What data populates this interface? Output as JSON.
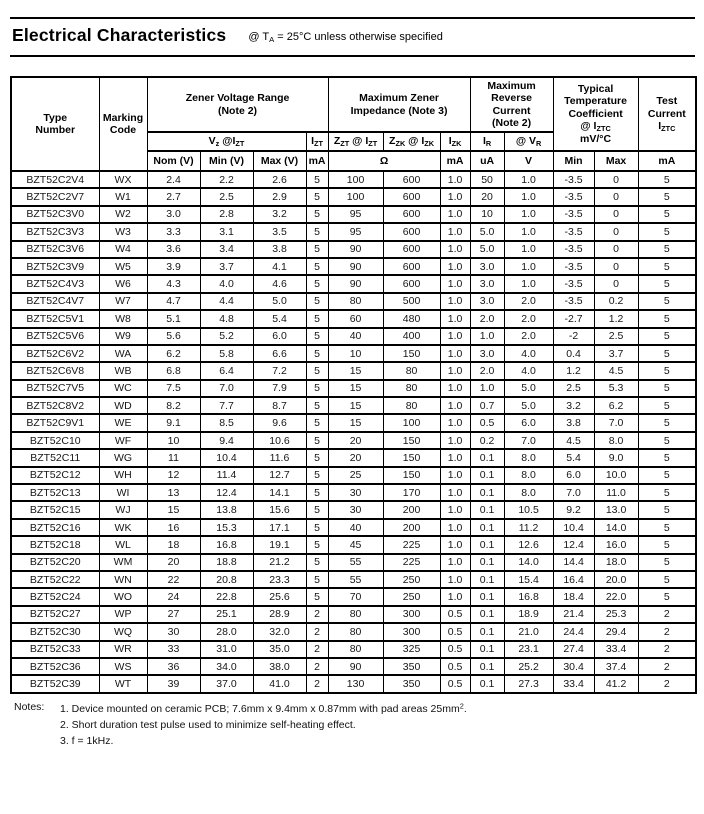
{
  "page": {
    "title": "Electrical Characteristics",
    "subtitle": [
      {
        "t": "@ T"
      },
      {
        "t": "A",
        "sub": true
      },
      {
        "t": " = 25°C unless otherwise specified"
      }
    ]
  },
  "table": {
    "column_keys": [
      "type-number",
      "marking-code",
      "vz-nom",
      "vz-min",
      "vz-max",
      "izt-ma",
      "zzt-ohm",
      "zzk-ohm",
      "izk-ma",
      "ir-ua",
      "vr-v",
      "tc-min",
      "tc-max",
      "iztc-ma"
    ],
    "header": {
      "type_number": [
        {
          "t": "Type"
        },
        {
          "br": true
        },
        {
          "t": "Number"
        }
      ],
      "marking_code": [
        {
          "t": "Marking"
        },
        {
          "br": true
        },
        {
          "t": "Code"
        }
      ],
      "zener_voltage_range": [
        {
          "t": "Zener Voltage Range"
        },
        {
          "br": true
        },
        {
          "t": "(Note 2)"
        }
      ],
      "max_zener_impedance": [
        {
          "t": "Maximum Zener"
        },
        {
          "br": true
        },
        {
          "t": "Impedance (Note 3)"
        }
      ],
      "max_reverse_current": [
        {
          "t": "Maximum"
        },
        {
          "br": true
        },
        {
          "t": "Reverse"
        },
        {
          "br": true
        },
        {
          "t": "Current"
        },
        {
          "br": true
        },
        {
          "t": "(Note 2)"
        }
      ],
      "temp_coefficient": [
        {
          "t": "Typical"
        },
        {
          "br": true
        },
        {
          "t": "Temperature"
        },
        {
          "br": true
        },
        {
          "t": "Coefficient"
        },
        {
          "br": true
        },
        {
          "t": "@ I"
        },
        {
          "t": "ZTC",
          "sub": true
        },
        {
          "br": true
        },
        {
          "t": "mV/°C"
        }
      ],
      "test_current": [
        {
          "t": "Test"
        },
        {
          "br": true
        },
        {
          "t": "Current"
        },
        {
          "br": true
        },
        {
          "t": "I"
        },
        {
          "t": "ZTC",
          "sub": true
        }
      ],
      "vz_at_izt": [
        {
          "t": "V"
        },
        {
          "t": "z",
          "sub": true
        },
        {
          "t": " @I"
        },
        {
          "t": "ZT",
          "sub": true
        }
      ],
      "izt": [
        {
          "t": "I"
        },
        {
          "t": "ZT",
          "sub": true
        }
      ],
      "zzt_at_izt": [
        {
          "t": "Z"
        },
        {
          "t": "ZT",
          "sub": true
        },
        {
          "t": " @ I"
        },
        {
          "t": "ZT",
          "sub": true
        }
      ],
      "zzk_at_izk": [
        {
          "t": "Z"
        },
        {
          "t": "ZK",
          "sub": true
        },
        {
          "t": " @ I"
        },
        {
          "t": "ZK",
          "sub": true
        }
      ],
      "izk": [
        {
          "t": "I"
        },
        {
          "t": "ZK",
          "sub": true
        }
      ],
      "ir": [
        {
          "t": "I"
        },
        {
          "t": "R",
          "sub": true
        }
      ],
      "at_vr": [
        {
          "t": "@ V"
        },
        {
          "t": "R",
          "sub": true
        }
      ],
      "nom_v": [
        {
          "t": "Nom (V)"
        }
      ],
      "min_v": [
        {
          "t": "Min (V)"
        }
      ],
      "max_v": [
        {
          "t": "Max (V)"
        }
      ],
      "unit_ma_izt": [
        {
          "t": "mA"
        }
      ],
      "unit_ohm": [
        {
          "t": "Ω"
        }
      ],
      "unit_ma_izk": [
        {
          "t": "mA"
        }
      ],
      "unit_ua": [
        {
          "t": "uA"
        }
      ],
      "unit_v": [
        {
          "t": "V"
        }
      ],
      "tc_min": [
        {
          "t": "Min"
        }
      ],
      "tc_max": [
        {
          "t": "Max"
        }
      ],
      "unit_ma_iztc": [
        {
          "t": "mA"
        }
      ]
    },
    "rows": [
      [
        "BZT52C2V4",
        "WX",
        "2.4",
        "2.2",
        "2.6",
        "5",
        "100",
        "600",
        "1.0",
        "50",
        "1.0",
        "-3.5",
        "0",
        "5"
      ],
      [
        "BZT52C2V7",
        "W1",
        "2.7",
        "2.5",
        "2.9",
        "5",
        "100",
        "600",
        "1.0",
        "20",
        "1.0",
        "-3.5",
        "0",
        "5"
      ],
      [
        "BZT52C3V0",
        "W2",
        "3.0",
        "2.8",
        "3.2",
        "5",
        "95",
        "600",
        "1.0",
        "10",
        "1.0",
        "-3.5",
        "0",
        "5"
      ],
      [
        "BZT52C3V3",
        "W3",
        "3.3",
        "3.1",
        "3.5",
        "5",
        "95",
        "600",
        "1.0",
        "5.0",
        "1.0",
        "-3.5",
        "0",
        "5"
      ],
      [
        "BZT52C3V6",
        "W4",
        "3.6",
        "3.4",
        "3.8",
        "5",
        "90",
        "600",
        "1.0",
        "5.0",
        "1.0",
        "-3.5",
        "0",
        "5"
      ],
      [
        "BZT52C3V9",
        "W5",
        "3.9",
        "3.7",
        "4.1",
        "5",
        "90",
        "600",
        "1.0",
        "3.0",
        "1.0",
        "-3.5",
        "0",
        "5"
      ],
      [
        "BZT52C4V3",
        "W6",
        "4.3",
        "4.0",
        "4.6",
        "5",
        "90",
        "600",
        "1.0",
        "3.0",
        "1.0",
        "-3.5",
        "0",
        "5"
      ],
      [
        "BZT52C4V7",
        "W7",
        "4.7",
        "4.4",
        "5.0",
        "5",
        "80",
        "500",
        "1.0",
        "3.0",
        "2.0",
        "-3.5",
        "0.2",
        "5"
      ],
      [
        "BZT52C5V1",
        "W8",
        "5.1",
        "4.8",
        "5.4",
        "5",
        "60",
        "480",
        "1.0",
        "2.0",
        "2.0",
        "-2.7",
        "1.2",
        "5"
      ],
      [
        "BZT52C5V6",
        "W9",
        "5.6",
        "5.2",
        "6.0",
        "5",
        "40",
        "400",
        "1.0",
        "1.0",
        "2.0",
        "-2",
        "2.5",
        "5"
      ],
      [
        "BZT52C6V2",
        "WA",
        "6.2",
        "5.8",
        "6.6",
        "5",
        "10",
        "150",
        "1.0",
        "3.0",
        "4.0",
        "0.4",
        "3.7",
        "5"
      ],
      [
        "BZT52C6V8",
        "WB",
        "6.8",
        "6.4",
        "7.2",
        "5",
        "15",
        "80",
        "1.0",
        "2.0",
        "4.0",
        "1.2",
        "4.5",
        "5"
      ],
      [
        "BZT52C7V5",
        "WC",
        "7.5",
        "7.0",
        "7.9",
        "5",
        "15",
        "80",
        "1.0",
        "1.0",
        "5.0",
        "2.5",
        "5.3",
        "5"
      ],
      [
        "BZT52C8V2",
        "WD",
        "8.2",
        "7.7",
        "8.7",
        "5",
        "15",
        "80",
        "1.0",
        "0.7",
        "5.0",
        "3.2",
        "6.2",
        "5"
      ],
      [
        "BZT52C9V1",
        "WE",
        "9.1",
        "8.5",
        "9.6",
        "5",
        "15",
        "100",
        "1.0",
        "0.5",
        "6.0",
        "3.8",
        "7.0",
        "5"
      ],
      [
        "BZT52C10",
        "WF",
        "10",
        "9.4",
        "10.6",
        "5",
        "20",
        "150",
        "1.0",
        "0.2",
        "7.0",
        "4.5",
        "8.0",
        "5"
      ],
      [
        "BZT52C11",
        "WG",
        "11",
        "10.4",
        "11.6",
        "5",
        "20",
        "150",
        "1.0",
        "0.1",
        "8.0",
        "5.4",
        "9.0",
        "5"
      ],
      [
        "BZT52C12",
        "WH",
        "12",
        "11.4",
        "12.7",
        "5",
        "25",
        "150",
        "1.0",
        "0.1",
        "8.0",
        "6.0",
        "10.0",
        "5"
      ],
      [
        "BZT52C13",
        "WI",
        "13",
        "12.4",
        "14.1",
        "5",
        "30",
        "170",
        "1.0",
        "0.1",
        "8.0",
        "7.0",
        "11.0",
        "5"
      ],
      [
        "BZT52C15",
        "WJ",
        "15",
        "13.8",
        "15.6",
        "5",
        "30",
        "200",
        "1.0",
        "0.1",
        "10.5",
        "9.2",
        "13.0",
        "5"
      ],
      [
        "BZT52C16",
        "WK",
        "16",
        "15.3",
        "17.1",
        "5",
        "40",
        "200",
        "1.0",
        "0.1",
        "11.2",
        "10.4",
        "14.0",
        "5"
      ],
      [
        "BZT52C18",
        "WL",
        "18",
        "16.8",
        "19.1",
        "5",
        "45",
        "225",
        "1.0",
        "0.1",
        "12.6",
        "12.4",
        "16.0",
        "5"
      ],
      [
        "BZT52C20",
        "WM",
        "20",
        "18.8",
        "21.2",
        "5",
        "55",
        "225",
        "1.0",
        "0.1",
        "14.0",
        "14.4",
        "18.0",
        "5"
      ],
      [
        "BZT52C22",
        "WN",
        "22",
        "20.8",
        "23.3",
        "5",
        "55",
        "250",
        "1.0",
        "0.1",
        "15.4",
        "16.4",
        "20.0",
        "5"
      ],
      [
        "BZT52C24",
        "WO",
        "24",
        "22.8",
        "25.6",
        "5",
        "70",
        "250",
        "1.0",
        "0.1",
        "16.8",
        "18.4",
        "22.0",
        "5"
      ],
      [
        "BZT52C27",
        "WP",
        "27",
        "25.1",
        "28.9",
        "2",
        "80",
        "300",
        "0.5",
        "0.1",
        "18.9",
        "21.4",
        "25.3",
        "2"
      ],
      [
        "BZT52C30",
        "WQ",
        "30",
        "28.0",
        "32.0",
        "2",
        "80",
        "300",
        "0.5",
        "0.1",
        "21.0",
        "24.4",
        "29.4",
        "2"
      ],
      [
        "BZT52C33",
        "WR",
        "33",
        "31.0",
        "35.0",
        "2",
        "80",
        "325",
        "0.5",
        "0.1",
        "23.1",
        "27.4",
        "33.4",
        "2"
      ],
      [
        "BZT52C36",
        "WS",
        "36",
        "34.0",
        "38.0",
        "2",
        "90",
        "350",
        "0.5",
        "0.1",
        "25.2",
        "30.4",
        "37.4",
        "2"
      ],
      [
        "BZT52C39",
        "WT",
        "39",
        "37.0",
        "41.0",
        "2",
        "130",
        "350",
        "0.5",
        "0.1",
        "27.3",
        "33.4",
        "41.2",
        "2"
      ]
    ]
  },
  "notes": {
    "label": "Notes:",
    "items": [
      [
        {
          "t": "1. Device mounted on ceramic PCB; 7.6mm x 9.4mm x 0.87mm with pad areas 25mm"
        },
        {
          "t": "2",
          "sup": true
        },
        {
          "t": "."
        }
      ],
      [
        {
          "t": "2. Short duration test pulse used to minimize self-heating effect."
        }
      ],
      [
        {
          "t": "3. f = 1kHz."
        }
      ]
    ]
  }
}
